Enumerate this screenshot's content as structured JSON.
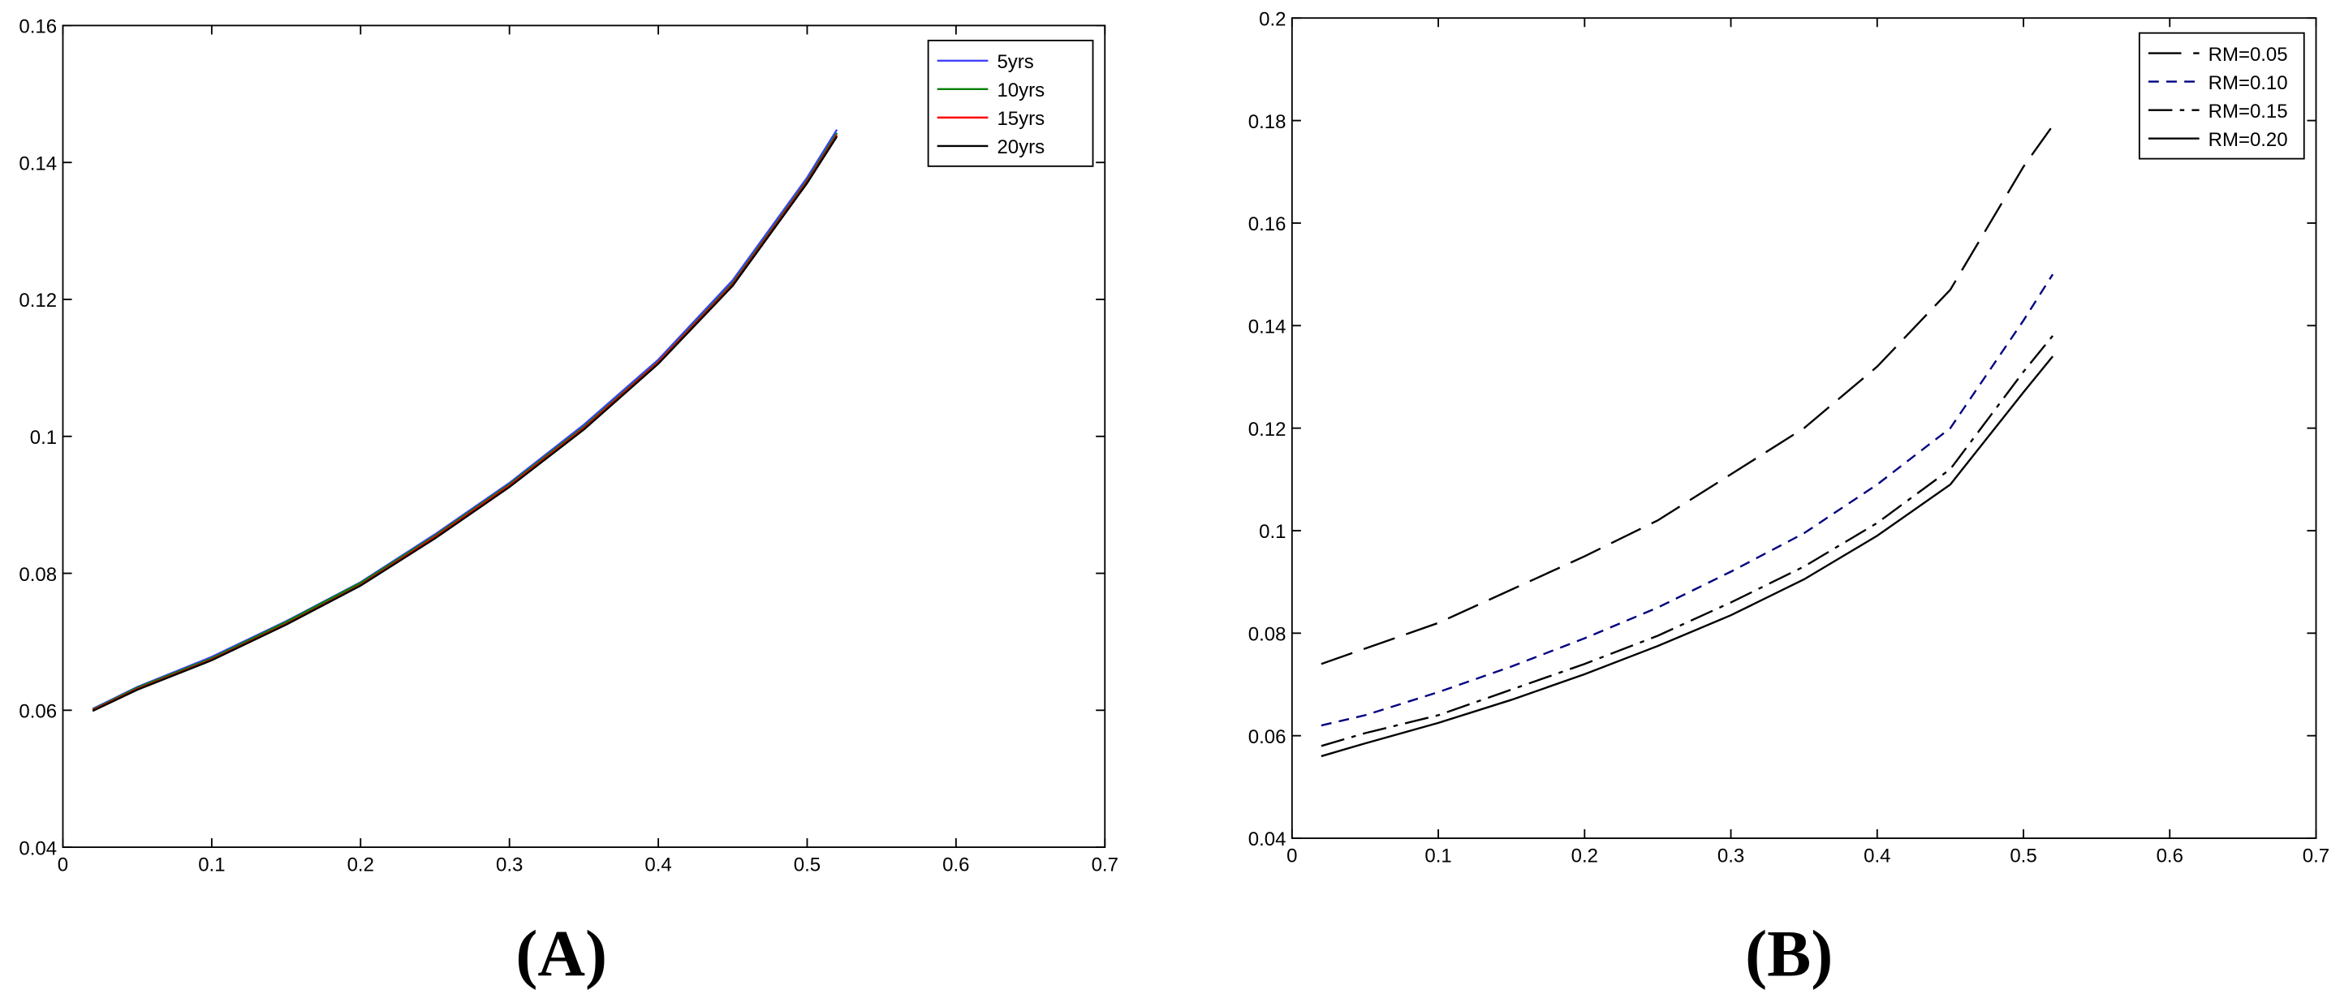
{
  "chart_data": [
    {
      "type": "line",
      "caption": "(A)",
      "x": [
        0.02,
        0.05,
        0.1,
        0.15,
        0.2,
        0.25,
        0.3,
        0.35,
        0.4,
        0.45,
        0.5,
        0.52
      ],
      "series": [
        {
          "name": "5yrs",
          "color": "#4040ff",
          "style": "solid",
          "values": [
            0.0602,
            0.0634,
            0.0678,
            0.073,
            0.0787,
            0.0857,
            0.0932,
            0.1017,
            0.1112,
            0.1228,
            0.1378,
            0.1448
          ]
        },
        {
          "name": "10yrs",
          "color": "#008000",
          "style": "solid",
          "values": [
            0.0601,
            0.0633,
            0.0676,
            0.0729,
            0.0786,
            0.0855,
            0.093,
            0.1014,
            0.1109,
            0.1224,
            0.1374,
            0.1443
          ]
        },
        {
          "name": "15yrs",
          "color": "#ff0000",
          "style": "solid",
          "values": [
            0.06,
            0.0631,
            0.0674,
            0.0726,
            0.0783,
            0.0853,
            0.0928,
            0.1012,
            0.1108,
            0.1222,
            0.1372,
            0.144
          ]
        },
        {
          "name": "20yrs",
          "color": "#000000",
          "style": "solid",
          "values": [
            0.0599,
            0.063,
            0.0673,
            0.0725,
            0.0782,
            0.0851,
            0.0926,
            0.101,
            0.1106,
            0.122,
            0.137,
            0.1438
          ]
        }
      ],
      "xlim": [
        0,
        0.7
      ],
      "xticks": [
        0,
        0.1,
        0.2,
        0.3,
        0.4,
        0.5,
        0.6,
        0.7
      ],
      "ylim": [
        0.04,
        0.16
      ],
      "yticks": [
        0.04,
        0.06,
        0.08,
        0.1,
        0.12,
        0.14,
        0.16
      ],
      "legend": "upper right"
    },
    {
      "type": "line",
      "caption": "(B)",
      "x": [
        0.02,
        0.05,
        0.1,
        0.15,
        0.2,
        0.25,
        0.3,
        0.35,
        0.4,
        0.45,
        0.5,
        0.52
      ],
      "series": [
        {
          "name": "RM=0.05",
          "color": "#000000",
          "style": "longdash",
          "values": [
            0.074,
            0.077,
            0.082,
            0.0885,
            0.095,
            0.102,
            0.111,
            0.12,
            0.132,
            0.147,
            0.171,
            0.179
          ]
        },
        {
          "name": "RM=0.10",
          "color": "#000080",
          "style": "dashed",
          "values": [
            0.062,
            0.064,
            0.0685,
            0.0735,
            0.079,
            0.085,
            0.092,
            0.0995,
            0.109,
            0.12,
            0.141,
            0.15
          ]
        },
        {
          "name": "RM=0.15",
          "color": "#000000",
          "style": "dashdot",
          "values": [
            0.058,
            0.0605,
            0.064,
            0.069,
            0.074,
            0.0795,
            0.086,
            0.093,
            0.1015,
            0.112,
            0.131,
            0.138
          ]
        },
        {
          "name": "RM=0.20",
          "color": "#000000",
          "style": "solid",
          "values": [
            0.056,
            0.0585,
            0.0625,
            0.067,
            0.072,
            0.0775,
            0.0835,
            0.0905,
            0.099,
            0.109,
            0.127,
            0.134
          ]
        }
      ],
      "xlim": [
        0,
        0.7
      ],
      "xticks": [
        0,
        0.1,
        0.2,
        0.3,
        0.4,
        0.5,
        0.6,
        0.7
      ],
      "ylim": [
        0.04,
        0.2
      ],
      "yticks": [
        0.04,
        0.06,
        0.08,
        0.1,
        0.12,
        0.14,
        0.16,
        0.18,
        0.2
      ],
      "legend": "upper right"
    }
  ]
}
